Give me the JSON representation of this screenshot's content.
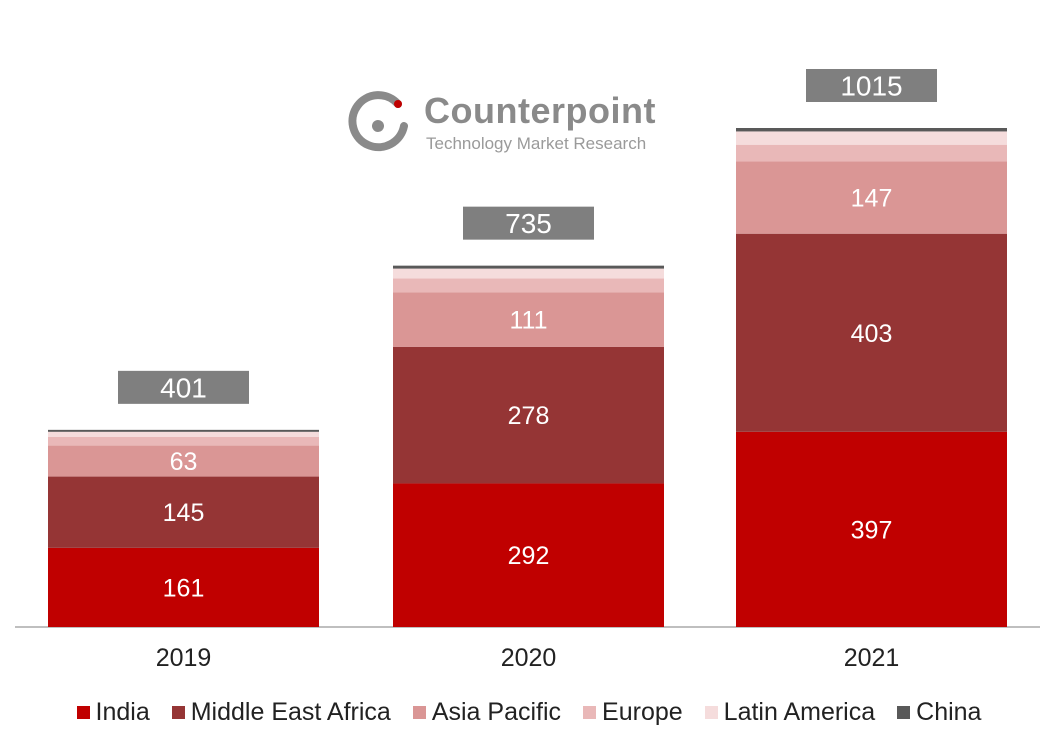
{
  "logo": {
    "name": "Counterpoint",
    "tagline": "Technology Market Research"
  },
  "chart_data": {
    "type": "bar",
    "stacked": true,
    "title": "",
    "xlabel": "",
    "ylabel": "",
    "categories": [
      "2019",
      "2020",
      "2021"
    ],
    "series": [
      {
        "name": "India",
        "color": "#c00000",
        "values": [
          161,
          292,
          397
        ]
      },
      {
        "name": "Middle East Africa",
        "color": "#953535",
        "values": [
          145,
          278,
          403
        ]
      },
      {
        "name": "Asia Pacific",
        "color": "#da9695",
        "values": [
          63,
          111,
          147
        ]
      },
      {
        "name": "Europe",
        "color": "#e9b8b8",
        "values": [
          18,
          28,
          34
        ]
      },
      {
        "name": "Latin America",
        "color": "#f5dcdc",
        "values": [
          10,
          20,
          27
        ]
      },
      {
        "name": "China",
        "color": "#595959",
        "values": [
          4,
          6,
          7
        ]
      }
    ],
    "totals": [
      401,
      735,
      1015
    ],
    "segment_labels": {
      "India": [
        "161",
        "292",
        "397"
      ],
      "Middle East Africa": [
        "145",
        "278",
        "403"
      ],
      "Asia Pacific": [
        "63",
        "111",
        "147"
      ]
    },
    "total_labels": [
      "401",
      "735",
      "1015"
    ],
    "total_label_color": "#7f7f7f",
    "ylim": [
      0,
      1015
    ],
    "grid": false,
    "legend_position": "bottom"
  }
}
